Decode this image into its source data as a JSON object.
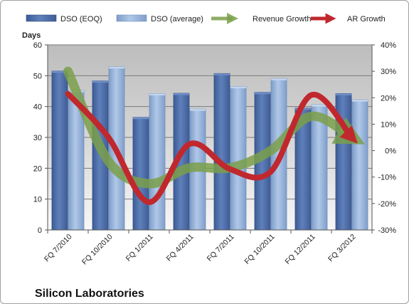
{
  "chart_data": {
    "type": "bar",
    "title": "",
    "footer": "Silicon Laboratories",
    "ylabel": "Days",
    "ylim": [
      0,
      60
    ],
    "yticks": [
      0,
      10,
      20,
      30,
      40,
      50,
      60
    ],
    "y2lim": [
      -30,
      40
    ],
    "y2ticks": [
      "-30%",
      "-20%",
      "-10%",
      "0%",
      "10%",
      "20%",
      "30%",
      "40%"
    ],
    "y2values": [
      -30,
      -20,
      -10,
      0,
      10,
      20,
      30,
      40
    ],
    "grid": true,
    "legend_position": "top",
    "categories": [
      "FQ 7/2010",
      "FQ 10/2010",
      "FQ 1/2011",
      "FQ 4/2011",
      "FQ 7/2011",
      "FQ 10/2011",
      "FQ 12/2011",
      "FQ 3/2012"
    ],
    "series": [
      {
        "name": "DSO (EOQ)",
        "type": "bar",
        "axis": "left",
        "color": "#4f6fa8",
        "values": [
          51.5,
          48.3,
          36.5,
          44.3,
          50.7,
          44.6,
          39.5,
          44.2
        ]
      },
      {
        "name": "DSO (average)",
        "type": "bar",
        "axis": "left",
        "color": "#9ab5da",
        "values": [
          45.2,
          52.9,
          44.2,
          39.2,
          46.5,
          49.1,
          40.6,
          42.2
        ]
      },
      {
        "name": "Revenue Growth",
        "type": "line",
        "axis": "right",
        "color": "#7a9f4a",
        "values": [
          30,
          -4,
          -12.5,
          -6.5,
          -6.5,
          0,
          13,
          5
        ]
      },
      {
        "name": "AR Growth",
        "type": "line",
        "axis": "right",
        "color": "#c0282e",
        "values": [
          21.5,
          5,
          -19.5,
          2.5,
          -7,
          -8,
          21,
          5
        ]
      }
    ]
  }
}
